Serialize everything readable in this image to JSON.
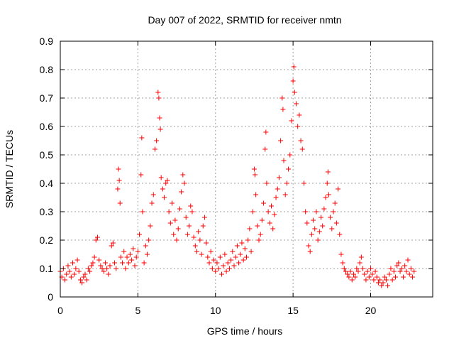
{
  "chart_data": {
    "type": "scatter",
    "title": "Day 007 of 2022, SRMTID for receiver nmtn",
    "xlabel": "GPS time / hours",
    "ylabel": "SRMTID / TECUs",
    "xlim": [
      0,
      24
    ],
    "ylim": [
      0,
      0.9
    ],
    "x_ticks": [
      0,
      5,
      10,
      15,
      20
    ],
    "x_tick_labels": [
      "0",
      "5",
      "10",
      "15",
      "20"
    ],
    "y_ticks": [
      0,
      0.1,
      0.2,
      0.3,
      0.4,
      0.5,
      0.6,
      0.7,
      0.8,
      0.9
    ],
    "y_tick_labels": [
      "0",
      "0.1",
      "0.2",
      "0.3",
      "0.4",
      "0.5",
      "0.6",
      "0.7",
      "0.8",
      "0.9"
    ],
    "grid": true,
    "marker": "+",
    "marker_color": "#ff0000",
    "series": [
      {
        "name": "SRMTID",
        "points": [
          [
            0.0,
            0.09
          ],
          [
            0.1,
            0.07
          ],
          [
            0.2,
            0.1
          ],
          [
            0.3,
            0.06
          ],
          [
            0.4,
            0.08
          ],
          [
            0.5,
            0.11
          ],
          [
            0.6,
            0.09
          ],
          [
            0.7,
            0.07
          ],
          [
            0.8,
            0.12
          ],
          [
            0.9,
            0.08
          ],
          [
            1.0,
            0.1
          ],
          [
            1.1,
            0.13
          ],
          [
            1.2,
            0.09
          ],
          [
            1.3,
            0.06
          ],
          [
            1.4,
            0.05
          ],
          [
            1.5,
            0.07
          ],
          [
            1.6,
            0.08
          ],
          [
            1.7,
            0.06
          ],
          [
            1.8,
            0.1
          ],
          [
            1.9,
            0.09
          ],
          [
            2.0,
            0.11
          ],
          [
            2.1,
            0.12
          ],
          [
            2.2,
            0.14
          ],
          [
            2.3,
            0.2
          ],
          [
            2.4,
            0.21
          ],
          [
            2.5,
            0.13
          ],
          [
            2.6,
            0.11
          ],
          [
            2.7,
            0.1
          ],
          [
            2.8,
            0.09
          ],
          [
            2.9,
            0.12
          ],
          [
            3.0,
            0.1
          ],
          [
            3.1,
            0.08
          ],
          [
            3.2,
            0.11
          ],
          [
            3.3,
            0.18
          ],
          [
            3.4,
            0.19
          ],
          [
            3.5,
            0.12
          ],
          [
            3.6,
            0.1
          ],
          [
            3.7,
            0.38
          ],
          [
            3.75,
            0.45
          ],
          [
            3.8,
            0.41
          ],
          [
            3.85,
            0.33
          ],
          [
            3.9,
            0.14
          ],
          [
            4.0,
            0.12
          ],
          [
            4.1,
            0.16
          ],
          [
            4.2,
            0.1
          ],
          [
            4.3,
            0.14
          ],
          [
            4.4,
            0.12
          ],
          [
            4.5,
            0.15
          ],
          [
            4.6,
            0.13
          ],
          [
            4.7,
            0.17
          ],
          [
            4.8,
            0.11
          ],
          [
            4.9,
            0.14
          ],
          [
            5.0,
            0.16
          ],
          [
            5.1,
            0.22
          ],
          [
            5.2,
            0.43
          ],
          [
            5.25,
            0.56
          ],
          [
            5.3,
            0.3
          ],
          [
            5.4,
            0.12
          ],
          [
            5.5,
            0.18
          ],
          [
            5.6,
            0.15
          ],
          [
            5.7,
            0.2
          ],
          [
            5.8,
            0.25
          ],
          [
            5.9,
            0.33
          ],
          [
            6.0,
            0.36
          ],
          [
            6.1,
            0.52
          ],
          [
            6.2,
            0.55
          ],
          [
            6.3,
            0.72
          ],
          [
            6.35,
            0.7
          ],
          [
            6.4,
            0.63
          ],
          [
            6.45,
            0.59
          ],
          [
            6.5,
            0.42
          ],
          [
            6.6,
            0.38
          ],
          [
            6.7,
            0.35
          ],
          [
            6.8,
            0.4
          ],
          [
            6.9,
            0.41
          ],
          [
            7.0,
            0.3
          ],
          [
            7.1,
            0.26
          ],
          [
            7.2,
            0.33
          ],
          [
            7.3,
            0.22
          ],
          [
            7.4,
            0.27
          ],
          [
            7.5,
            0.2
          ],
          [
            7.6,
            0.24
          ],
          [
            7.7,
            0.31
          ],
          [
            7.8,
            0.37
          ],
          [
            7.9,
            0.43
          ],
          [
            8.0,
            0.4
          ],
          [
            8.1,
            0.28
          ],
          [
            8.2,
            0.22
          ],
          [
            8.3,
            0.25
          ],
          [
            8.4,
            0.32
          ],
          [
            8.5,
            0.3
          ],
          [
            8.6,
            0.21
          ],
          [
            8.7,
            0.18
          ],
          [
            8.8,
            0.16
          ],
          [
            8.9,
            0.23
          ],
          [
            9.0,
            0.2
          ],
          [
            9.1,
            0.15
          ],
          [
            9.2,
            0.25
          ],
          [
            9.3,
            0.28
          ],
          [
            9.4,
            0.19
          ],
          [
            9.5,
            0.14
          ],
          [
            9.6,
            0.12
          ],
          [
            9.7,
            0.16
          ],
          [
            9.8,
            0.1
          ],
          [
            9.9,
            0.13
          ],
          [
            10.0,
            0.09
          ],
          [
            10.1,
            0.12
          ],
          [
            10.2,
            0.1
          ],
          [
            10.3,
            0.14
          ],
          [
            10.4,
            0.08
          ],
          [
            10.5,
            0.11
          ],
          [
            10.6,
            0.15
          ],
          [
            10.7,
            0.09
          ],
          [
            10.8,
            0.12
          ],
          [
            10.9,
            0.1
          ],
          [
            11.0,
            0.13
          ],
          [
            11.1,
            0.16
          ],
          [
            11.2,
            0.11
          ],
          [
            11.3,
            0.14
          ],
          [
            11.4,
            0.18
          ],
          [
            11.5,
            0.12
          ],
          [
            11.6,
            0.15
          ],
          [
            11.7,
            0.19
          ],
          [
            11.8,
            0.13
          ],
          [
            11.9,
            0.17
          ],
          [
            12.0,
            0.14
          ],
          [
            12.1,
            0.2
          ],
          [
            12.2,
            0.24
          ],
          [
            12.3,
            0.16
          ],
          [
            12.4,
            0.3
          ],
          [
            12.5,
            0.45
          ],
          [
            12.55,
            0.43
          ],
          [
            12.6,
            0.36
          ],
          [
            12.7,
            0.25
          ],
          [
            12.8,
            0.2
          ],
          [
            12.9,
            0.22
          ],
          [
            13.0,
            0.27
          ],
          [
            13.1,
            0.33
          ],
          [
            13.2,
            0.52
          ],
          [
            13.25,
            0.58
          ],
          [
            13.3,
            0.4
          ],
          [
            13.4,
            0.3
          ],
          [
            13.5,
            0.26
          ],
          [
            13.6,
            0.32
          ],
          [
            13.7,
            0.24
          ],
          [
            13.8,
            0.29
          ],
          [
            13.9,
            0.35
          ],
          [
            14.0,
            0.38
          ],
          [
            14.1,
            0.42
          ],
          [
            14.2,
            0.55
          ],
          [
            14.3,
            0.7
          ],
          [
            14.35,
            0.66
          ],
          [
            14.4,
            0.48
          ],
          [
            14.5,
            0.36
          ],
          [
            14.6,
            0.4
          ],
          [
            14.7,
            0.45
          ],
          [
            14.8,
            0.5
          ],
          [
            14.9,
            0.62
          ],
          [
            15.0,
            0.76
          ],
          [
            15.05,
            0.81
          ],
          [
            15.1,
            0.72
          ],
          [
            15.2,
            0.68
          ],
          [
            15.3,
            0.6
          ],
          [
            15.4,
            0.64
          ],
          [
            15.5,
            0.55
          ],
          [
            15.6,
            0.52
          ],
          [
            15.7,
            0.4
          ],
          [
            15.8,
            0.3
          ],
          [
            15.9,
            0.26
          ],
          [
            16.0,
            0.18
          ],
          [
            16.1,
            0.16
          ],
          [
            16.2,
            0.22
          ],
          [
            16.3,
            0.27
          ],
          [
            16.4,
            0.24
          ],
          [
            16.5,
            0.3
          ],
          [
            16.6,
            0.2
          ],
          [
            16.7,
            0.23
          ],
          [
            16.8,
            0.28
          ],
          [
            16.9,
            0.25
          ],
          [
            17.0,
            0.31
          ],
          [
            17.1,
            0.35
          ],
          [
            17.2,
            0.4
          ],
          [
            17.25,
            0.44
          ],
          [
            17.3,
            0.36
          ],
          [
            17.4,
            0.28
          ],
          [
            17.5,
            0.24
          ],
          [
            17.6,
            0.3
          ],
          [
            17.7,
            0.33
          ],
          [
            17.8,
            0.26
          ],
          [
            17.9,
            0.38
          ],
          [
            18.0,
            0.22
          ],
          [
            18.1,
            0.15
          ],
          [
            18.2,
            0.12
          ],
          [
            18.3,
            0.1
          ],
          [
            18.4,
            0.09
          ],
          [
            18.5,
            0.08
          ],
          [
            18.6,
            0.07
          ],
          [
            18.7,
            0.09
          ],
          [
            18.8,
            0.06
          ],
          [
            18.9,
            0.08
          ],
          [
            19.0,
            0.07
          ],
          [
            19.1,
            0.1
          ],
          [
            19.2,
            0.09
          ],
          [
            19.3,
            0.12
          ],
          [
            19.4,
            0.14
          ],
          [
            19.5,
            0.1
          ],
          [
            19.6,
            0.08
          ],
          [
            19.7,
            0.06
          ],
          [
            19.8,
            0.09
          ],
          [
            19.9,
            0.07
          ],
          [
            20.0,
            0.1
          ],
          [
            20.1,
            0.08
          ],
          [
            20.2,
            0.06
          ],
          [
            20.3,
            0.09
          ],
          [
            20.4,
            0.07
          ],
          [
            20.5,
            0.05
          ],
          [
            20.6,
            0.06
          ],
          [
            20.7,
            0.04
          ],
          [
            20.8,
            0.05
          ],
          [
            20.9,
            0.07
          ],
          [
            21.0,
            0.06
          ],
          [
            21.1,
            0.04
          ],
          [
            21.2,
            0.08
          ],
          [
            21.3,
            0.1
          ],
          [
            21.4,
            0.06
          ],
          [
            21.5,
            0.09
          ],
          [
            21.6,
            0.07
          ],
          [
            21.7,
            0.11
          ],
          [
            21.8,
            0.12
          ],
          [
            21.9,
            0.09
          ],
          [
            22.0,
            0.1
          ],
          [
            22.1,
            0.07
          ],
          [
            22.2,
            0.11
          ],
          [
            22.3,
            0.09
          ],
          [
            22.4,
            0.13
          ],
          [
            22.5,
            0.08
          ],
          [
            22.6,
            0.1
          ],
          [
            22.7,
            0.07
          ],
          [
            22.8,
            0.09
          ]
        ]
      }
    ]
  }
}
